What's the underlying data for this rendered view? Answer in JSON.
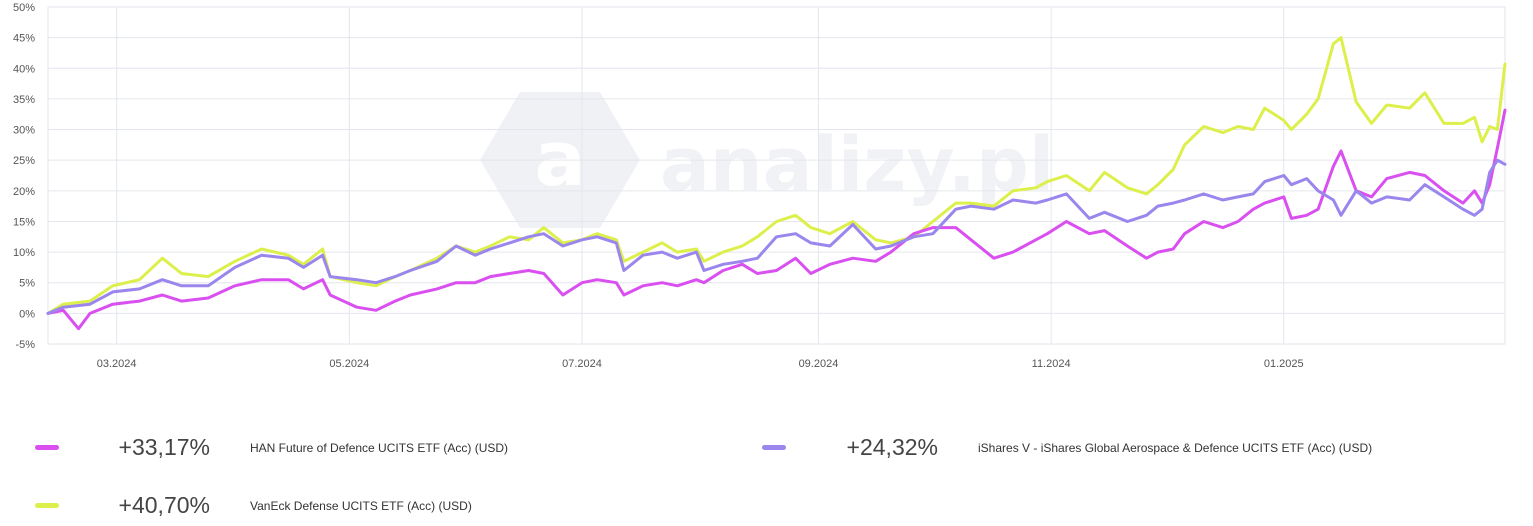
{
  "chart_data": {
    "type": "line",
    "title": "",
    "xlabel": "",
    "ylabel": "",
    "ylim": [
      -5,
      50
    ],
    "xlim": [
      "2024-02-12",
      "2025-02-28"
    ],
    "yticks": [
      -5,
      0,
      5,
      10,
      15,
      20,
      25,
      30,
      35,
      40,
      45,
      50
    ],
    "ytick_labels": [
      "-5%",
      "0%",
      "5%",
      "10%",
      "15%",
      "20%",
      "25%",
      "30%",
      "35%",
      "40%",
      "45%",
      "50%"
    ],
    "xticks": [
      "2024-03-01",
      "2024-05-01",
      "2024-07-01",
      "2024-09-01",
      "2024-11-01",
      "2025-01-01"
    ],
    "xtick_labels": [
      "03.2024",
      "05.2024",
      "07.2024",
      "09.2024",
      "11.2024",
      "01.2025"
    ],
    "grid": true,
    "legend_position": "bottom",
    "watermark": "analizy.pl",
    "series": [
      {
        "name": "VanEck Defense UCITS ETF (Acc) (USD)",
        "color": "#dcef4a",
        "final_label": "+40,70%",
        "points": [
          [
            "2024-02-12",
            0
          ],
          [
            "2024-02-16",
            1.5
          ],
          [
            "2024-02-23",
            2
          ],
          [
            "2024-02-29",
            4.5
          ],
          [
            "2024-03-07",
            5.5
          ],
          [
            "2024-03-13",
            9
          ],
          [
            "2024-03-18",
            6.5
          ],
          [
            "2024-03-25",
            6
          ],
          [
            "2024-04-01",
            8.5
          ],
          [
            "2024-04-08",
            10.5
          ],
          [
            "2024-04-15",
            9.5
          ],
          [
            "2024-04-19",
            8
          ],
          [
            "2024-04-24",
            10.5
          ],
          [
            "2024-04-26",
            6
          ],
          [
            "2024-05-03",
            5
          ],
          [
            "2024-05-08",
            4.5
          ],
          [
            "2024-05-13",
            6
          ],
          [
            "2024-05-17",
            7
          ],
          [
            "2024-05-24",
            9
          ],
          [
            "2024-05-29",
            11
          ],
          [
            "2024-06-03",
            10
          ],
          [
            "2024-06-07",
            11
          ],
          [
            "2024-06-12",
            12.5
          ],
          [
            "2024-06-17",
            12
          ],
          [
            "2024-06-21",
            14
          ],
          [
            "2024-06-26",
            11.5
          ],
          [
            "2024-07-01",
            12
          ],
          [
            "2024-07-05",
            13
          ],
          [
            "2024-07-10",
            12
          ],
          [
            "2024-07-12",
            8.5
          ],
          [
            "2024-07-17",
            10
          ],
          [
            "2024-07-22",
            11.5
          ],
          [
            "2024-07-26",
            10
          ],
          [
            "2024-07-31",
            10.5
          ],
          [
            "2024-08-02",
            8.5
          ],
          [
            "2024-08-07",
            10
          ],
          [
            "2024-08-12",
            11
          ],
          [
            "2024-08-16",
            12.5
          ],
          [
            "2024-08-21",
            15
          ],
          [
            "2024-08-26",
            16
          ],
          [
            "2024-08-30",
            14
          ],
          [
            "2024-09-04",
            13
          ],
          [
            "2024-09-10",
            15
          ],
          [
            "2024-09-16",
            12
          ],
          [
            "2024-09-20",
            11.5
          ],
          [
            "2024-09-26",
            12.5
          ],
          [
            "2024-10-01",
            15
          ],
          [
            "2024-10-07",
            18
          ],
          [
            "2024-10-11",
            18
          ],
          [
            "2024-10-17",
            17.5
          ],
          [
            "2024-10-22",
            20
          ],
          [
            "2024-10-28",
            20.5
          ],
          [
            "2024-10-31",
            21.5
          ],
          [
            "2024-11-05",
            22.5
          ],
          [
            "2024-11-11",
            20
          ],
          [
            "2024-11-15",
            23
          ],
          [
            "2024-11-21",
            20.5
          ],
          [
            "2024-11-26",
            19.5
          ],
          [
            "2024-11-29",
            21
          ],
          [
            "2024-12-03",
            23.5
          ],
          [
            "2024-12-06",
            27.5
          ],
          [
            "2024-12-11",
            30.5
          ],
          [
            "2024-12-16",
            29.5
          ],
          [
            "2024-12-20",
            30.5
          ],
          [
            "2024-12-24",
            30
          ],
          [
            "2024-12-27",
            33.5
          ],
          [
            "2025-01-01",
            31.5
          ],
          [
            "2025-01-03",
            30
          ],
          [
            "2025-01-07",
            32.5
          ],
          [
            "2025-01-10",
            35
          ],
          [
            "2025-01-14",
            44
          ],
          [
            "2025-01-16",
            45
          ],
          [
            "2025-01-20",
            34.5
          ],
          [
            "2025-01-24",
            31
          ],
          [
            "2025-01-28",
            34
          ],
          [
            "2025-02-03",
            33.5
          ],
          [
            "2025-02-07",
            36
          ],
          [
            "2025-02-12",
            31
          ],
          [
            "2025-02-17",
            31
          ],
          [
            "2025-02-20",
            32
          ],
          [
            "2025-02-22",
            28
          ],
          [
            "2025-02-24",
            30.5
          ],
          [
            "2025-02-26",
            30
          ],
          [
            "2025-02-28",
            40.7
          ]
        ]
      },
      {
        "name": "HAN Future of Defence UCITS ETF (Acc) (USD)",
        "color": "#d94ff0",
        "final_label": "+33,17%",
        "points": [
          [
            "2024-02-12",
            0
          ],
          [
            "2024-02-16",
            0.5
          ],
          [
            "2024-02-20",
            -2.5
          ],
          [
            "2024-02-23",
            0
          ],
          [
            "2024-02-29",
            1.5
          ],
          [
            "2024-03-07",
            2
          ],
          [
            "2024-03-13",
            3
          ],
          [
            "2024-03-18",
            2
          ],
          [
            "2024-03-25",
            2.5
          ],
          [
            "2024-04-01",
            4.5
          ],
          [
            "2024-04-08",
            5.5
          ],
          [
            "2024-04-15",
            5.5
          ],
          [
            "2024-04-19",
            4
          ],
          [
            "2024-04-24",
            5.5
          ],
          [
            "2024-04-26",
            3
          ],
          [
            "2024-05-03",
            1
          ],
          [
            "2024-05-08",
            0.5
          ],
          [
            "2024-05-13",
            2
          ],
          [
            "2024-05-17",
            3
          ],
          [
            "2024-05-24",
            4
          ],
          [
            "2024-05-29",
            5
          ],
          [
            "2024-06-03",
            5
          ],
          [
            "2024-06-07",
            6
          ],
          [
            "2024-06-12",
            6.5
          ],
          [
            "2024-06-17",
            7
          ],
          [
            "2024-06-21",
            6.5
          ],
          [
            "2024-06-26",
            3
          ],
          [
            "2024-07-01",
            5
          ],
          [
            "2024-07-05",
            5.5
          ],
          [
            "2024-07-10",
            5
          ],
          [
            "2024-07-12",
            3
          ],
          [
            "2024-07-17",
            4.5
          ],
          [
            "2024-07-22",
            5
          ],
          [
            "2024-07-26",
            4.5
          ],
          [
            "2024-07-31",
            5.5
          ],
          [
            "2024-08-02",
            5
          ],
          [
            "2024-08-07",
            7
          ],
          [
            "2024-08-12",
            8
          ],
          [
            "2024-08-16",
            6.5
          ],
          [
            "2024-08-21",
            7
          ],
          [
            "2024-08-26",
            9
          ],
          [
            "2024-08-30",
            6.5
          ],
          [
            "2024-09-04",
            8
          ],
          [
            "2024-09-10",
            9
          ],
          [
            "2024-09-16",
            8.5
          ],
          [
            "2024-09-20",
            10
          ],
          [
            "2024-09-26",
            13
          ],
          [
            "2024-10-01",
            14
          ],
          [
            "2024-10-07",
            14
          ],
          [
            "2024-10-11",
            12
          ],
          [
            "2024-10-17",
            9
          ],
          [
            "2024-10-22",
            10
          ],
          [
            "2024-10-28",
            12
          ],
          [
            "2024-10-31",
            13
          ],
          [
            "2024-11-05",
            15
          ],
          [
            "2024-11-11",
            13
          ],
          [
            "2024-11-15",
            13.5
          ],
          [
            "2024-11-21",
            11
          ],
          [
            "2024-11-26",
            9
          ],
          [
            "2024-11-29",
            10
          ],
          [
            "2024-12-03",
            10.5
          ],
          [
            "2024-12-06",
            13
          ],
          [
            "2024-12-11",
            15
          ],
          [
            "2024-12-16",
            14
          ],
          [
            "2024-12-20",
            15
          ],
          [
            "2024-12-24",
            17
          ],
          [
            "2024-12-27",
            18
          ],
          [
            "2025-01-01",
            19
          ],
          [
            "2025-01-03",
            15.5
          ],
          [
            "2025-01-07",
            16
          ],
          [
            "2025-01-10",
            17
          ],
          [
            "2025-01-14",
            24
          ],
          [
            "2025-01-16",
            26.5
          ],
          [
            "2025-01-20",
            20
          ],
          [
            "2025-01-24",
            19
          ],
          [
            "2025-01-28",
            22
          ],
          [
            "2025-02-03",
            23
          ],
          [
            "2025-02-07",
            22.5
          ],
          [
            "2025-02-12",
            20
          ],
          [
            "2025-02-17",
            18
          ],
          [
            "2025-02-20",
            20
          ],
          [
            "2025-02-22",
            18
          ],
          [
            "2025-02-24",
            21
          ],
          [
            "2025-02-26",
            27
          ],
          [
            "2025-02-28",
            33.17
          ]
        ]
      },
      {
        "name": "iShares V - iShares Global Aerospace & Defence UCITS ETF (Acc) (USD)",
        "color": "#9a86ec",
        "final_label": "+24,32%",
        "points": [
          [
            "2024-02-12",
            0
          ],
          [
            "2024-02-16",
            1
          ],
          [
            "2024-02-23",
            1.5
          ],
          [
            "2024-02-29",
            3.5
          ],
          [
            "2024-03-07",
            4
          ],
          [
            "2024-03-13",
            5.5
          ],
          [
            "2024-03-18",
            4.5
          ],
          [
            "2024-03-25",
            4.5
          ],
          [
            "2024-04-01",
            7.5
          ],
          [
            "2024-04-08",
            9.5
          ],
          [
            "2024-04-15",
            9
          ],
          [
            "2024-04-19",
            7.5
          ],
          [
            "2024-04-24",
            9.5
          ],
          [
            "2024-04-26",
            6
          ],
          [
            "2024-05-03",
            5.5
          ],
          [
            "2024-05-08",
            5
          ],
          [
            "2024-05-13",
            6
          ],
          [
            "2024-05-17",
            7
          ],
          [
            "2024-05-24",
            8.5
          ],
          [
            "2024-05-29",
            11
          ],
          [
            "2024-06-03",
            9.5
          ],
          [
            "2024-06-07",
            10.5
          ],
          [
            "2024-06-12",
            11.5
          ],
          [
            "2024-06-17",
            12.5
          ],
          [
            "2024-06-21",
            13
          ],
          [
            "2024-06-26",
            11
          ],
          [
            "2024-07-01",
            12
          ],
          [
            "2024-07-05",
            12.5
          ],
          [
            "2024-07-10",
            11.5
          ],
          [
            "2024-07-12",
            7
          ],
          [
            "2024-07-17",
            9.5
          ],
          [
            "2024-07-22",
            10
          ],
          [
            "2024-07-26",
            9
          ],
          [
            "2024-07-31",
            10
          ],
          [
            "2024-08-02",
            7
          ],
          [
            "2024-08-07",
            8
          ],
          [
            "2024-08-12",
            8.5
          ],
          [
            "2024-08-16",
            9
          ],
          [
            "2024-08-21",
            12.5
          ],
          [
            "2024-08-26",
            13
          ],
          [
            "2024-08-30",
            11.5
          ],
          [
            "2024-09-04",
            11
          ],
          [
            "2024-09-10",
            14.5
          ],
          [
            "2024-09-16",
            10.5
          ],
          [
            "2024-09-20",
            11
          ],
          [
            "2024-09-26",
            12.5
          ],
          [
            "2024-10-01",
            13
          ],
          [
            "2024-10-07",
            17
          ],
          [
            "2024-10-11",
            17.5
          ],
          [
            "2024-10-17",
            17
          ],
          [
            "2024-10-22",
            18.5
          ],
          [
            "2024-10-28",
            18
          ],
          [
            "2024-10-31",
            18.5
          ],
          [
            "2024-11-05",
            19.5
          ],
          [
            "2024-11-11",
            15.5
          ],
          [
            "2024-11-15",
            16.5
          ],
          [
            "2024-11-21",
            15
          ],
          [
            "2024-11-26",
            16
          ],
          [
            "2024-11-29",
            17.5
          ],
          [
            "2024-12-03",
            18
          ],
          [
            "2024-12-06",
            18.5
          ],
          [
            "2024-12-11",
            19.5
          ],
          [
            "2024-12-16",
            18.5
          ],
          [
            "2024-12-20",
            19
          ],
          [
            "2024-12-24",
            19.5
          ],
          [
            "2024-12-27",
            21.5
          ],
          [
            "2025-01-01",
            22.5
          ],
          [
            "2025-01-03",
            21
          ],
          [
            "2025-01-07",
            22
          ],
          [
            "2025-01-10",
            20
          ],
          [
            "2025-01-14",
            18.5
          ],
          [
            "2025-01-16",
            16
          ],
          [
            "2025-01-20",
            20
          ],
          [
            "2025-01-24",
            18
          ],
          [
            "2025-01-28",
            19
          ],
          [
            "2025-02-03",
            18.5
          ],
          [
            "2025-02-07",
            21
          ],
          [
            "2025-02-12",
            19
          ],
          [
            "2025-02-17",
            17
          ],
          [
            "2025-02-20",
            16
          ],
          [
            "2025-02-22",
            17
          ],
          [
            "2025-02-24",
            23
          ],
          [
            "2025-02-26",
            25
          ],
          [
            "2025-02-28",
            24.32
          ]
        ]
      }
    ]
  },
  "legend": {
    "items": [
      {
        "name": "HAN Future of Defence UCITS ETF (Acc) (USD)",
        "value": "+33,17%",
        "color": "#d94ff0"
      },
      {
        "name": "iShares V - iShares Global Aerospace & Defence UCITS ETF (Acc) (USD)",
        "value": "+24,32%",
        "color": "#9a86ec"
      },
      {
        "name": "VanEck Defense UCITS ETF (Acc) (USD)",
        "value": "+40,70%",
        "color": "#dcef4a"
      }
    ]
  }
}
